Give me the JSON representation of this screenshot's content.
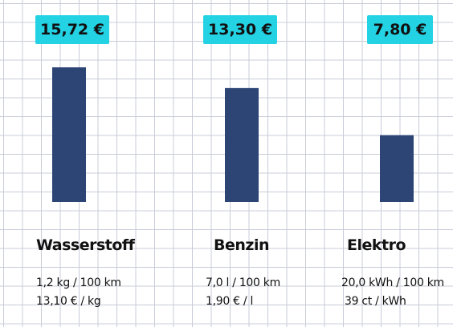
{
  "chart_data": {
    "type": "bar",
    "categories": [
      "Wasserstoff",
      "Benzin",
      "Elektro"
    ],
    "values": [
      15.72,
      13.3,
      7.8
    ],
    "value_labels": [
      "15,72 €",
      "13,30 €",
      "7,80 €"
    ],
    "details": [
      [
        "1,2 kg / 100 km",
        "13,10 € / kg"
      ],
      [
        "7,0 l / 100 km",
        "1,90 € / l"
      ],
      [
        "20,0 kWh / 100 km",
        "39 ct / kWh"
      ]
    ],
    "ylim": [
      0,
      20
    ],
    "grid": true,
    "bar_color": "#2c4575",
    "label_color": "#23d3e4"
  }
}
